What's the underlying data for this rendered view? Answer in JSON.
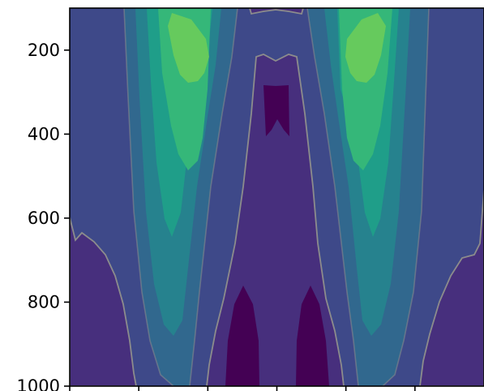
{
  "chart_data": {
    "type": "heatmap",
    "subtype": "filled-contour",
    "title": "",
    "xlabel": "",
    "ylabel": "",
    "y_axis_inverted": true,
    "ylim": [
      1000,
      100
    ],
    "yticks": [
      {
        "value": 200,
        "label": "200"
      },
      {
        "value": 400,
        "label": "400"
      },
      {
        "value": 600,
        "label": "600"
      },
      {
        "value": 800,
        "label": "800"
      },
      {
        "value": 1000,
        "label": "1000"
      }
    ],
    "xticks_labeled": false,
    "x_tick_count": 6,
    "colormap": "viridis",
    "contour_line_color": "#8c8c8c",
    "levels": [
      {
        "level": 0,
        "color": "#440154"
      },
      {
        "level": 1,
        "color": "#472f7d"
      },
      {
        "level": 2,
        "color": "#3e4989"
      },
      {
        "level": 3,
        "color": "#31688e"
      },
      {
        "level": 4,
        "color": "#26828e"
      },
      {
        "level": 5,
        "color": "#1f9e89"
      },
      {
        "level": 6,
        "color": "#35b779"
      },
      {
        "level": 7,
        "color": "#6ece58"
      }
    ],
    "grid": false,
    "legend": "none"
  }
}
